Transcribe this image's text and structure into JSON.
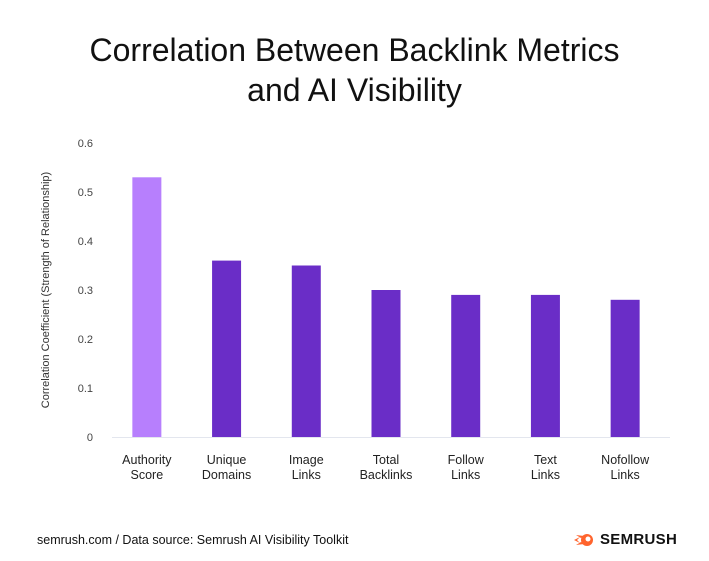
{
  "chart_data": {
    "type": "bar",
    "title": "Correlation Between Backlink Metrics and AI Visibility",
    "title_lines": [
      "Correlation Between Backlink Metrics",
      "and AI Visibility"
    ],
    "ylabel": "Correlation Coefficient (Strength of Relationship)",
    "xlabel": "",
    "ylim": [
      0,
      0.6
    ],
    "yticks": [
      "0",
      "0.1",
      "0.2",
      "0.3",
      "0.4",
      "0.5",
      "0.6"
    ],
    "categories": [
      [
        "Authority",
        "Score"
      ],
      [
        "Unique",
        "Domains"
      ],
      [
        "Image",
        "Links"
      ],
      [
        "Total",
        "Backlinks"
      ],
      [
        "Follow",
        "Links"
      ],
      [
        "Text",
        "Links"
      ],
      [
        "Nofollow",
        "Links"
      ]
    ],
    "values": [
      0.53,
      0.36,
      0.35,
      0.3,
      0.29,
      0.29,
      0.28
    ],
    "colors": [
      "#b77ffd",
      "#6a2dc7",
      "#6a2dc7",
      "#6a2dc7",
      "#6a2dc7",
      "#6a2dc7",
      "#6a2dc7"
    ],
    "grid": false
  },
  "footer": {
    "source": "semrush.com / Data source: Semrush AI Visibility Toolkit",
    "logo": "SEMRUSH",
    "logo_color": "#ff642d"
  }
}
